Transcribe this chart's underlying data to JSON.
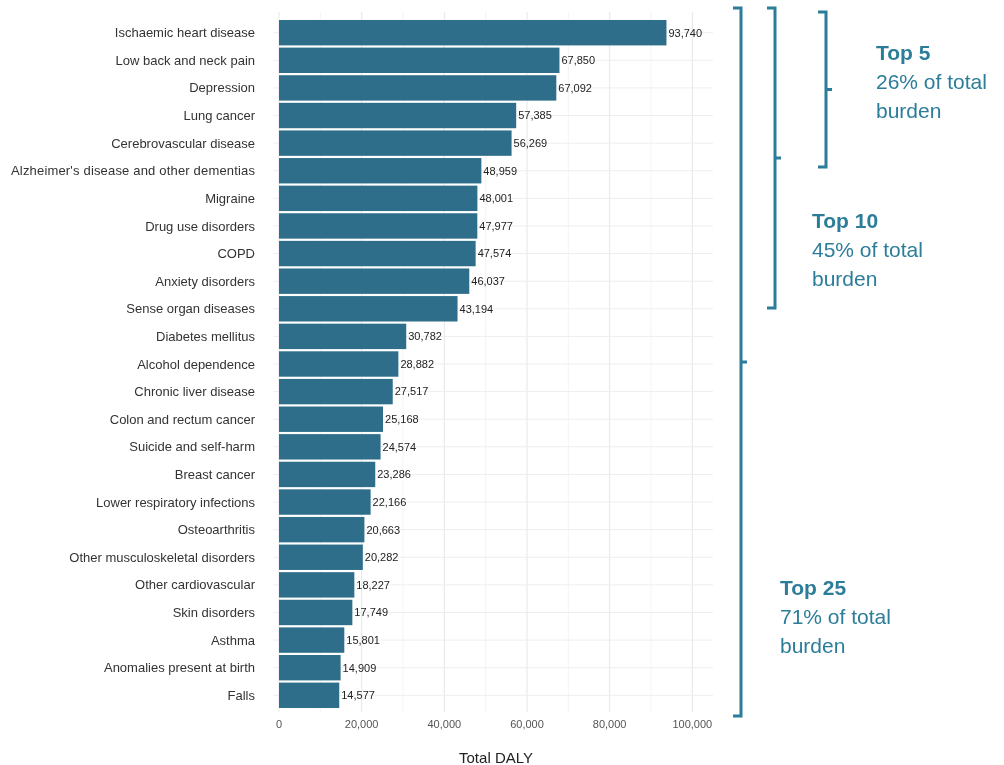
{
  "chart_data": {
    "type": "bar",
    "orientation": "horizontal",
    "xlabel": "Total DALY",
    "categories": [
      "Ischaemic heart disease",
      "Low back and neck pain",
      "Depression",
      "Lung cancer",
      "Cerebrovascular disease",
      "Alzheimer's disease and other dementias",
      "Migraine",
      "Drug use disorders",
      "COPD",
      "Anxiety disorders",
      "Sense organ diseases",
      "Diabetes mellitus",
      "Alcohol dependence",
      "Chronic liver disease",
      "Colon and rectum cancer",
      "Suicide and self-harm",
      "Breast cancer",
      "Lower respiratory infections",
      "Osteoarthritis",
      "Other musculoskeletal disorders",
      "Other cardiovascular",
      "Skin disorders",
      "Asthma",
      "Anomalies present at birth",
      "Falls"
    ],
    "values": [
      93740,
      67850,
      67092,
      57385,
      56269,
      48959,
      48001,
      47977,
      47574,
      46037,
      43194,
      30782,
      28882,
      27517,
      25168,
      24574,
      23286,
      22166,
      20663,
      20282,
      18227,
      17749,
      15801,
      14909,
      14577
    ],
    "value_labels": [
      "93,740",
      "67,850",
      "67,092",
      "57,385",
      "56,269",
      "48,959",
      "48,001",
      "47,977",
      "47,574",
      "46,037",
      "43,194",
      "30,782",
      "28,882",
      "27,517",
      "25,168",
      "24,574",
      "23,286",
      "22,166",
      "20,663",
      "20,282",
      "18,227",
      "17,749",
      "15,801",
      "14,909",
      "14,577"
    ],
    "color": "#2e6e8a",
    "xlim": [
      0,
      105000
    ],
    "xticks": [
      0,
      {
        "value": 20000,
        "label": "20,000"
      },
      {
        "value": 40000,
        "label": "40,000"
      },
      {
        "value": 60000,
        "label": "60,000"
      },
      {
        "value": 80000,
        "label": "80,000"
      },
      {
        "value": 100000,
        "label": "100,000"
      }
    ],
    "grid": "x",
    "annotations": [
      "Top 5\n26% of total\nburden",
      "Top 10\n45% of total\nburden",
      "Top 25\n71% of total\nburden"
    ]
  }
}
